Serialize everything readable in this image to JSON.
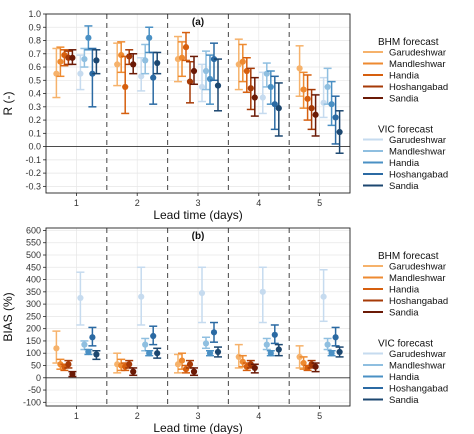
{
  "chart_data": [
    {
      "type": "scatter",
      "panel_label": "(a)",
      "ylabel": "R (-)",
      "xlabel": "Lead time (days)",
      "categories": [
        "1",
        "2",
        "3",
        "4",
        "5"
      ],
      "ylim": [
        -0.35,
        1.0
      ],
      "yticks": [
        -0.3,
        -0.2,
        -0.1,
        0.0,
        0.1,
        0.2,
        0.3,
        0.4,
        0.5,
        0.6,
        0.7,
        0.8,
        0.9,
        1.0
      ],
      "ytick_labels": [
        "-0.3",
        "-0.2",
        "-0.1",
        "0.0",
        "0.1",
        "0.2",
        "0.3",
        "0.4",
        "0.5",
        "0.6",
        "0.7",
        "0.8",
        "0.9",
        "1.0"
      ],
      "reference_line": 0,
      "grid": true,
      "series": [
        {
          "group": "BHM forecast",
          "name": "Garudeshwar",
          "color": "#f6b26b",
          "mean": [
            0.55,
            0.62,
            0.66,
            0.62,
            0.59
          ],
          "lower": [
            0.37,
            0.46,
            0.49,
            0.43,
            0.38
          ],
          "upper": [
            0.74,
            0.78,
            0.83,
            0.81,
            0.76
          ]
        },
        {
          "group": "BHM forecast",
          "name": "Mandleshwar",
          "color": "#ee8a30",
          "mean": [
            0.64,
            0.69,
            0.67,
            0.64,
            0.43
          ],
          "lower": [
            0.53,
            0.56,
            0.53,
            0.49,
            0.29
          ],
          "upper": [
            0.75,
            0.79,
            0.79,
            0.77,
            0.56
          ]
        },
        {
          "group": "BHM forecast",
          "name": "Handia",
          "color": "#d65f0e",
          "mean": [
            0.69,
            0.45,
            0.75,
            0.57,
            0.36
          ],
          "lower": [
            0.61,
            0.25,
            0.65,
            0.41,
            0.2
          ],
          "upper": [
            0.73,
            0.68,
            0.86,
            0.67,
            0.54
          ]
        },
        {
          "group": "BHM forecast",
          "name": "Hoshangabad",
          "color": "#a63a07",
          "mean": [
            0.67,
            0.68,
            0.49,
            0.44,
            0.29
          ],
          "lower": [
            0.62,
            0.62,
            0.33,
            0.28,
            0.13
          ],
          "upper": [
            0.72,
            0.73,
            0.64,
            0.59,
            0.43
          ]
        },
        {
          "group": "BHM forecast",
          "name": "Sandia",
          "color": "#6b1a06",
          "mean": [
            0.67,
            0.62,
            0.57,
            0.37,
            0.24
          ],
          "lower": [
            0.62,
            0.55,
            0.47,
            0.23,
            0.08
          ],
          "upper": [
            0.73,
            0.7,
            0.68,
            0.52,
            0.39
          ]
        },
        {
          "group": "VIC forecast",
          "name": "Garudeshwar",
          "color": "#c6dbef",
          "mean": [
            0.55,
            0.53,
            0.45,
            0.37,
            0.33
          ],
          "lower": [
            0.43,
            0.42,
            0.34,
            0.25,
            0.22
          ],
          "upper": [
            0.69,
            0.67,
            0.62,
            0.56,
            0.52
          ]
        },
        {
          "group": "VIC forecast",
          "name": "Mandleshwar",
          "color": "#8fbfe0",
          "mean": [
            0.66,
            0.65,
            0.57,
            0.55,
            0.45
          ],
          "lower": [
            0.6,
            0.55,
            0.43,
            0.45,
            0.32
          ],
          "upper": [
            0.74,
            0.77,
            0.72,
            0.63,
            0.59
          ]
        },
        {
          "group": "VIC forecast",
          "name": "Handia",
          "color": "#4a90c4",
          "mean": [
            0.82,
            0.82,
            0.51,
            0.45,
            0.32
          ],
          "lower": [
            0.73,
            0.71,
            0.32,
            0.32,
            0.16
          ],
          "upper": [
            0.91,
            0.9,
            0.69,
            0.57,
            0.49
          ]
        },
        {
          "group": "VIC forecast",
          "name": "Hoshangabad",
          "color": "#2b6aa3",
          "mean": [
            0.55,
            0.52,
            0.66,
            0.32,
            0.22
          ],
          "lower": [
            0.3,
            0.32,
            0.5,
            0.13,
            0.02
          ],
          "upper": [
            0.74,
            0.71,
            0.78,
            0.53,
            0.38
          ]
        },
        {
          "group": "VIC forecast",
          "name": "Sandia",
          "color": "#1c4770",
          "mean": [
            0.65,
            0.63,
            0.46,
            0.29,
            0.11
          ],
          "lower": [
            0.55,
            0.55,
            0.27,
            0.08,
            -0.05
          ],
          "upper": [
            0.73,
            0.71,
            0.66,
            0.48,
            0.27
          ]
        }
      ]
    },
    {
      "type": "scatter",
      "panel_label": "(b)",
      "ylabel": "BIAS (%)",
      "xlabel": "Lead time (days)",
      "categories": [
        "1",
        "2",
        "3",
        "4",
        "5"
      ],
      "ylim": [
        -115,
        610
      ],
      "yticks": [
        -100,
        -50,
        0,
        50,
        100,
        150,
        200,
        250,
        300,
        350,
        400,
        450,
        500,
        550,
        600
      ],
      "ytick_labels": [
        "-100",
        "-50",
        "0",
        "50",
        "100",
        "150",
        "200",
        "250",
        "300",
        "350",
        "400",
        "450",
        "500",
        "550",
        "600"
      ],
      "reference_line": 0,
      "grid": true,
      "series": [
        {
          "group": "BHM forecast",
          "name": "Garudeshwar",
          "color": "#f6b26b",
          "mean": [
            120,
            55,
            55,
            85,
            85
          ],
          "lower": [
            60,
            20,
            20,
            40,
            40
          ],
          "upper": [
            190,
            100,
            95,
            135,
            130
          ]
        },
        {
          "group": "BHM forecast",
          "name": "Mandleshwar",
          "color": "#ee8a30",
          "mean": [
            55,
            50,
            70,
            65,
            60
          ],
          "lower": [
            35,
            30,
            35,
            45,
            35
          ],
          "upper": [
            75,
            75,
            100,
            90,
            85
          ]
        },
        {
          "group": "BHM forecast",
          "name": "Handia",
          "color": "#d65f0e",
          "mean": [
            45,
            45,
            35,
            45,
            40
          ],
          "lower": [
            30,
            30,
            20,
            30,
            30
          ],
          "upper": [
            55,
            60,
            50,
            60,
            50
          ]
        },
        {
          "group": "BHM forecast",
          "name": "Hoshangabad",
          "color": "#a63a07",
          "mean": [
            55,
            55,
            55,
            55,
            55
          ],
          "lower": [
            40,
            40,
            40,
            40,
            40
          ],
          "upper": [
            70,
            70,
            70,
            70,
            70
          ]
        },
        {
          "group": "BHM forecast",
          "name": "Sandia",
          "color": "#6b1a06",
          "mean": [
            15,
            25,
            25,
            40,
            45
          ],
          "lower": [
            5,
            10,
            10,
            20,
            25
          ],
          "upper": [
            25,
            40,
            40,
            55,
            60
          ]
        },
        {
          "group": "VIC forecast",
          "name": "Garudeshwar",
          "color": "#c6dbef",
          "mean": [
            325,
            330,
            345,
            350,
            330
          ],
          "lower": [
            215,
            215,
            225,
            225,
            230
          ],
          "upper": [
            430,
            450,
            450,
            450,
            440
          ]
        },
        {
          "group": "VIC forecast",
          "name": "Mandleshwar",
          "color": "#8fbfe0",
          "mean": [
            135,
            135,
            140,
            135,
            135
          ],
          "lower": [
            115,
            110,
            120,
            115,
            115
          ],
          "upper": [
            150,
            160,
            165,
            160,
            160
          ]
        },
        {
          "group": "VIC forecast",
          "name": "Handia",
          "color": "#4a90c4",
          "mean": [
            105,
            100,
            100,
            100,
            100
          ],
          "lower": [
            95,
            90,
            90,
            90,
            90
          ],
          "upper": [
            115,
            110,
            110,
            110,
            110
          ]
        },
        {
          "group": "VIC forecast",
          "name": "Hoshangabad",
          "color": "#2b6aa3",
          "mean": [
            165,
            170,
            185,
            175,
            165
          ],
          "lower": [
            130,
            135,
            145,
            140,
            130
          ],
          "upper": [
            205,
            210,
            225,
            215,
            205
          ]
        },
        {
          "group": "VIC forecast",
          "name": "Sandia",
          "color": "#1c4770",
          "mean": [
            95,
            100,
            105,
            115,
            105
          ],
          "lower": [
            75,
            80,
            85,
            90,
            85
          ],
          "upper": [
            110,
            120,
            125,
            135,
            125
          ]
        }
      ]
    }
  ],
  "legend": {
    "groups": [
      {
        "title": "BHM forecast",
        "items": [
          "Garudeshwar",
          "Mandleshwar",
          "Handia",
          "Hoshangabad",
          "Sandia"
        ],
        "colors": [
          "#f6b26b",
          "#ee8a30",
          "#d65f0e",
          "#a63a07",
          "#6b1a06"
        ]
      },
      {
        "title": "VIC forecast",
        "items": [
          "Garudeshwar",
          "Mandleshwar",
          "Handia",
          "Hoshangabad",
          "Sandia"
        ],
        "colors": [
          "#c6dbef",
          "#8fbfe0",
          "#4a90c4",
          "#2b6aa3",
          "#1c4770"
        ]
      }
    ]
  },
  "colors": {
    "panel_bg": "#ffffff",
    "grid": "#e6e6e6",
    "axis": "#222222",
    "divider": "#555555"
  }
}
